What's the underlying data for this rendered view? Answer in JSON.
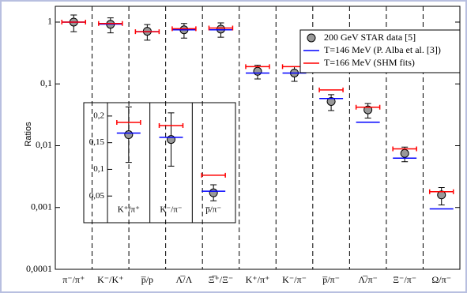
{
  "chart_data": [
    {
      "type": "errorbar",
      "y_label": "Ratios",
      "log_y": true,
      "categories": [
        "π⁻/π⁺",
        "K⁻/K⁺",
        "p̅/p",
        "Λ̅/Λ",
        "Ξ̅⁺/Ξ⁻",
        "K⁺/π⁺",
        "K⁻/π⁻",
        "p̅/π⁻",
        "Λ̅/π⁻",
        "Ξ⁻/π⁻",
        "Ω/π⁻"
      ],
      "series": [
        {
          "name": "200 GeV STAR data [5]",
          "color": "#999999",
          "values": [
            1.0,
            0.92,
            0.71,
            0.75,
            0.77,
            0.16,
            0.15,
            0.052,
            0.038,
            0.0075,
            0.0016
          ],
          "errors": [
            0.3,
            0.25,
            0.2,
            0.2,
            0.2,
            0.04,
            0.04,
            0.015,
            0.01,
            0.002,
            0.0005
          ]
        },
        {
          "name": "T=146 MeV (P. Alba et al. [3])",
          "color": "#0000ff",
          "values": [
            1.0,
            0.93,
            0.7,
            0.75,
            0.75,
            0.15,
            0.15,
            0.058,
            0.024,
            0.0063,
            0.00095
          ]
        },
        {
          "name": "T=166 MeV (SHM fits)",
          "color": "#ff0000",
          "values": [
            1.0,
            0.95,
            0.7,
            0.78,
            0.8,
            0.19,
            0.19,
            0.08,
            0.042,
            0.0089,
            0.0018
          ]
        }
      ],
      "ylim": [
        0.0001,
        1.8
      ],
      "yticks": [
        {
          "value": 0.0001,
          "label": "0,0001"
        },
        {
          "value": 0.001,
          "label": "0,001"
        },
        {
          "value": 0.01,
          "label": "0,01"
        },
        {
          "value": 0.1,
          "label": "0,1"
        },
        1
      ],
      "legend": "upper right"
    },
    {
      "type": "errorbar",
      "log_y": false,
      "categories": [
        "K⁺/π⁺",
        "K⁻/π⁻",
        "p̅/π⁻"
      ],
      "series": [
        {
          "color": "#999999",
          "values": [
            0.165,
            0.156,
            0.056
          ],
          "errors": [
            0.052,
            0.05,
            0.015
          ]
        },
        {
          "color": "#0000ff",
          "values": [
            0.168,
            0.16,
            0.059
          ]
        },
        {
          "color": "#ff0000",
          "values": [
            0.188,
            0.182,
            0.089
          ]
        }
      ],
      "ylim": [
        0,
        0.225
      ],
      "yticks": [
        {
          "value": 0.05,
          "label": "0,05"
        },
        {
          "value": 0.1,
          "label": "0,1"
        },
        {
          "value": 0.15,
          "label": "0,15"
        },
        {
          "value": 0.2,
          "label": "0,2"
        }
      ]
    }
  ]
}
